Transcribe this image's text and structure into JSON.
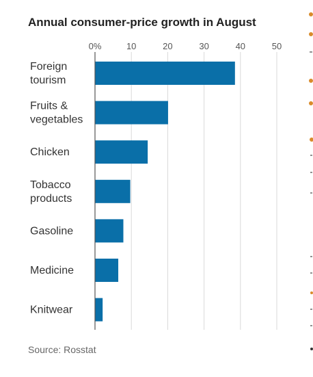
{
  "chart_data": {
    "type": "bar",
    "orientation": "horizontal",
    "title": "Annual consumer-price growth in August",
    "categories": [
      [
        "Foreign",
        "tourism"
      ],
      [
        "Fruits &",
        "vegetables"
      ],
      [
        "Chicken"
      ],
      [
        "Tobacco",
        "products"
      ],
      [
        "Gasoline"
      ],
      [
        "Medicine"
      ],
      [
        "Knitwear"
      ]
    ],
    "values": [
      38.5,
      20.1,
      14.5,
      9.7,
      7.8,
      6.4,
      2.1
    ],
    "xticks": [
      "0%",
      "10",
      "20",
      "30",
      "40",
      "50"
    ],
    "xtick_values": [
      0,
      10,
      20,
      30,
      40,
      50
    ],
    "xlim": [
      0,
      50
    ],
    "xlabel": "",
    "ylabel": "",
    "grid": true,
    "source": "Source: Rosstat"
  },
  "colors": {
    "bar": "#0a6fa8",
    "artifact_orange": "#d98b2b"
  }
}
